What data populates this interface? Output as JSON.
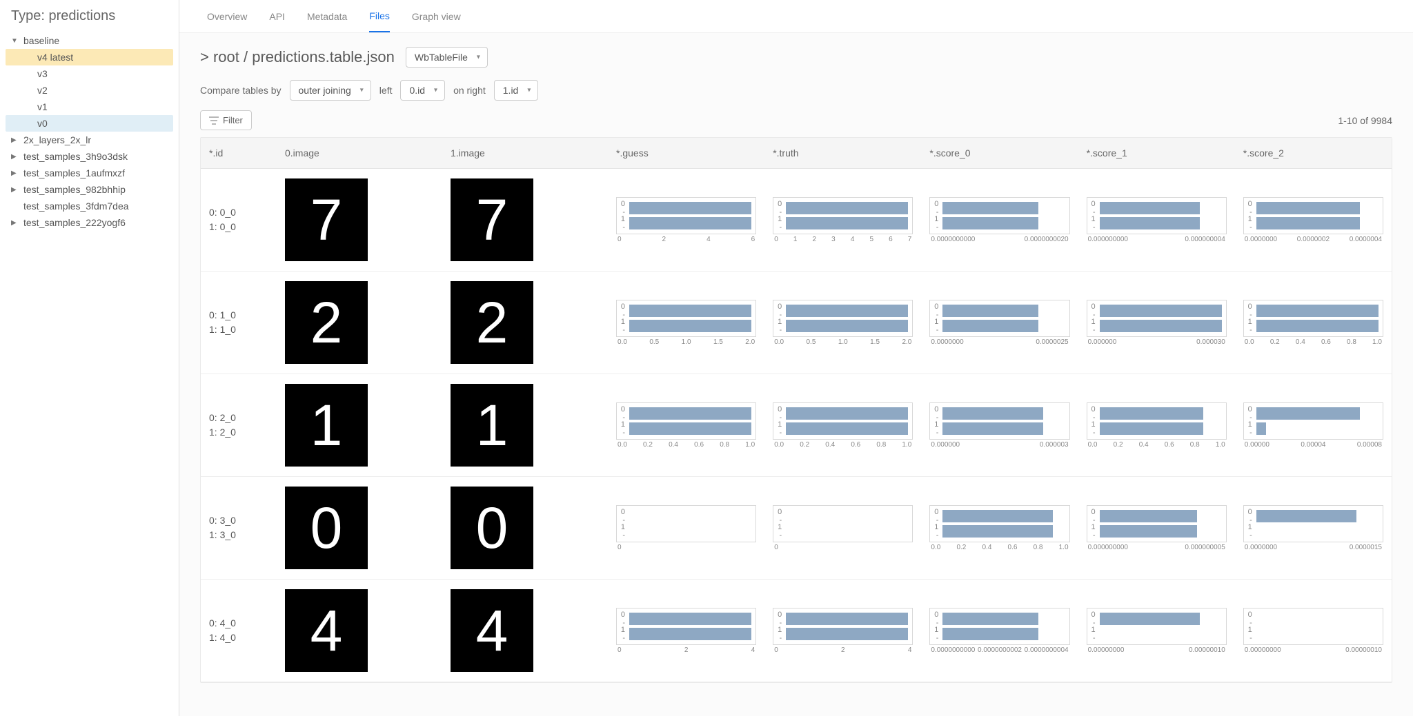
{
  "sidebar": {
    "title": "Type: predictions",
    "groups": [
      {
        "label": "baseline",
        "expanded": true,
        "children": [
          {
            "label": "v4 latest",
            "state": "selected"
          },
          {
            "label": "v3",
            "state": "normal"
          },
          {
            "label": "v2",
            "state": "normal"
          },
          {
            "label": "v1",
            "state": "normal"
          },
          {
            "label": "v0",
            "state": "hover"
          }
        ]
      },
      {
        "label": "2x_layers_2x_lr",
        "expanded": false,
        "children": []
      },
      {
        "label": "test_samples_3h9o3dsk",
        "expanded": false,
        "children": []
      },
      {
        "label": "test_samples_1aufmxzf",
        "expanded": false,
        "children": []
      },
      {
        "label": "test_samples_982bhhip",
        "expanded": false,
        "children": []
      }
    ],
    "loose_item": "test_samples_3fdm7dea",
    "groups2": [
      {
        "label": "test_samples_222yogf6",
        "expanded": false,
        "children": []
      }
    ]
  },
  "tabs": [
    "Overview",
    "API",
    "Metadata",
    "Files",
    "Graph view"
  ],
  "active_tab": 3,
  "breadcrumb": "> root / predictions.table.json",
  "file_type_selector": "WbTableFile",
  "compare": {
    "label": "Compare tables by",
    "join": "outer joining",
    "left_label": "left",
    "left": "0.id",
    "right_label": "on right",
    "right": "1.id"
  },
  "filter_label": "Filter",
  "pager": "1-10 of 9984",
  "columns": [
    "*.id",
    "0.image",
    "1.image",
    "*.guess",
    "*.truth",
    "*.score_0",
    "*.score_1",
    "*.score_2"
  ],
  "bar_color": "#8ea8c3",
  "rows": [
    {
      "id0": "0: 0_0",
      "id1": "1: 0_0",
      "digit": "7",
      "charts": [
        {
          "v": [
            1.0,
            1.0
          ],
          "ticks": [
            "0",
            "2",
            "4",
            "6"
          ]
        },
        {
          "v": [
            1.0,
            1.0
          ],
          "ticks": [
            "0",
            "1",
            "2",
            "3",
            "4",
            "5",
            "6",
            "7"
          ]
        },
        {
          "v": [
            0.78,
            0.78
          ],
          "ticks": [
            "0.0000000000",
            "0.0000000020"
          ]
        },
        {
          "v": [
            0.82,
            0.82
          ],
          "ticks": [
            "0.000000000",
            "0.000000004"
          ]
        },
        {
          "v": [
            0.85,
            0.85
          ],
          "ticks": [
            "0.0000000",
            "0.0000002",
            "0.0000004"
          ]
        }
      ]
    },
    {
      "id0": "0: 1_0",
      "id1": "1: 1_0",
      "digit": "2",
      "charts": [
        {
          "v": [
            1.0,
            1.0
          ],
          "ticks": [
            "0.0",
            "0.5",
            "1.0",
            "1.5",
            "2.0"
          ]
        },
        {
          "v": [
            1.0,
            1.0
          ],
          "ticks": [
            "0.0",
            "0.5",
            "1.0",
            "1.5",
            "2.0"
          ]
        },
        {
          "v": [
            0.78,
            0.78
          ],
          "ticks": [
            "0.0000000",
            "0.0000025"
          ]
        },
        {
          "v": [
            1.0,
            1.0
          ],
          "ticks": [
            "0.000000",
            "0.000030"
          ]
        },
        {
          "v": [
            1.0,
            1.0
          ],
          "ticks": [
            "0.0",
            "0.2",
            "0.4",
            "0.6",
            "0.8",
            "1.0"
          ]
        }
      ]
    },
    {
      "id0": "0: 2_0",
      "id1": "1: 2_0",
      "digit": "1",
      "charts": [
        {
          "v": [
            1.0,
            1.0
          ],
          "ticks": [
            "0.0",
            "0.2",
            "0.4",
            "0.6",
            "0.8",
            "1.0"
          ]
        },
        {
          "v": [
            1.0,
            1.0
          ],
          "ticks": [
            "0.0",
            "0.2",
            "0.4",
            "0.6",
            "0.8",
            "1.0"
          ]
        },
        {
          "v": [
            0.82,
            0.82
          ],
          "ticks": [
            "0.000000",
            "0.000003"
          ]
        },
        {
          "v": [
            0.85,
            0.85
          ],
          "ticks": [
            "0.0",
            "0.2",
            "0.4",
            "0.6",
            "0.8",
            "1.0"
          ]
        },
        {
          "v": [
            0.85,
            0.08
          ],
          "ticks": [
            "0.00000",
            "0.00004",
            "0.00008"
          ]
        }
      ]
    },
    {
      "id0": "0: 3_0",
      "id1": "1: 3_0",
      "digit": "0",
      "charts": [
        {
          "v": [
            0.0,
            0.0
          ],
          "ticks": [
            "0"
          ]
        },
        {
          "v": [
            0.0,
            0.0
          ],
          "ticks": [
            "0"
          ]
        },
        {
          "v": [
            0.9,
            0.9
          ],
          "ticks": [
            "0.0",
            "0.2",
            "0.4",
            "0.6",
            "0.8",
            "1.0"
          ]
        },
        {
          "v": [
            0.8,
            0.8
          ],
          "ticks": [
            "0.000000000",
            "0.000000005"
          ]
        },
        {
          "v": [
            0.82,
            0.0
          ],
          "ticks": [
            "0.0000000",
            "0.0000015"
          ]
        }
      ]
    },
    {
      "id0": "0: 4_0",
      "id1": "1: 4_0",
      "digit": "4",
      "charts": [
        {
          "v": [
            1.0,
            1.0
          ],
          "ticks": [
            "0",
            "2",
            "4"
          ]
        },
        {
          "v": [
            1.0,
            1.0
          ],
          "ticks": [
            "0",
            "2",
            "4"
          ]
        },
        {
          "v": [
            0.78,
            0.78
          ],
          "ticks": [
            "0.0000000000",
            "0.0000000002",
            "0.0000000004"
          ]
        },
        {
          "v": [
            0.82,
            0.0
          ],
          "ticks": [
            "0.00000000",
            "0.00000010"
          ]
        },
        {
          "v": [
            0.0,
            0.0
          ],
          "ticks": [
            "0.00000000",
            "0.00000010"
          ]
        }
      ]
    }
  ]
}
